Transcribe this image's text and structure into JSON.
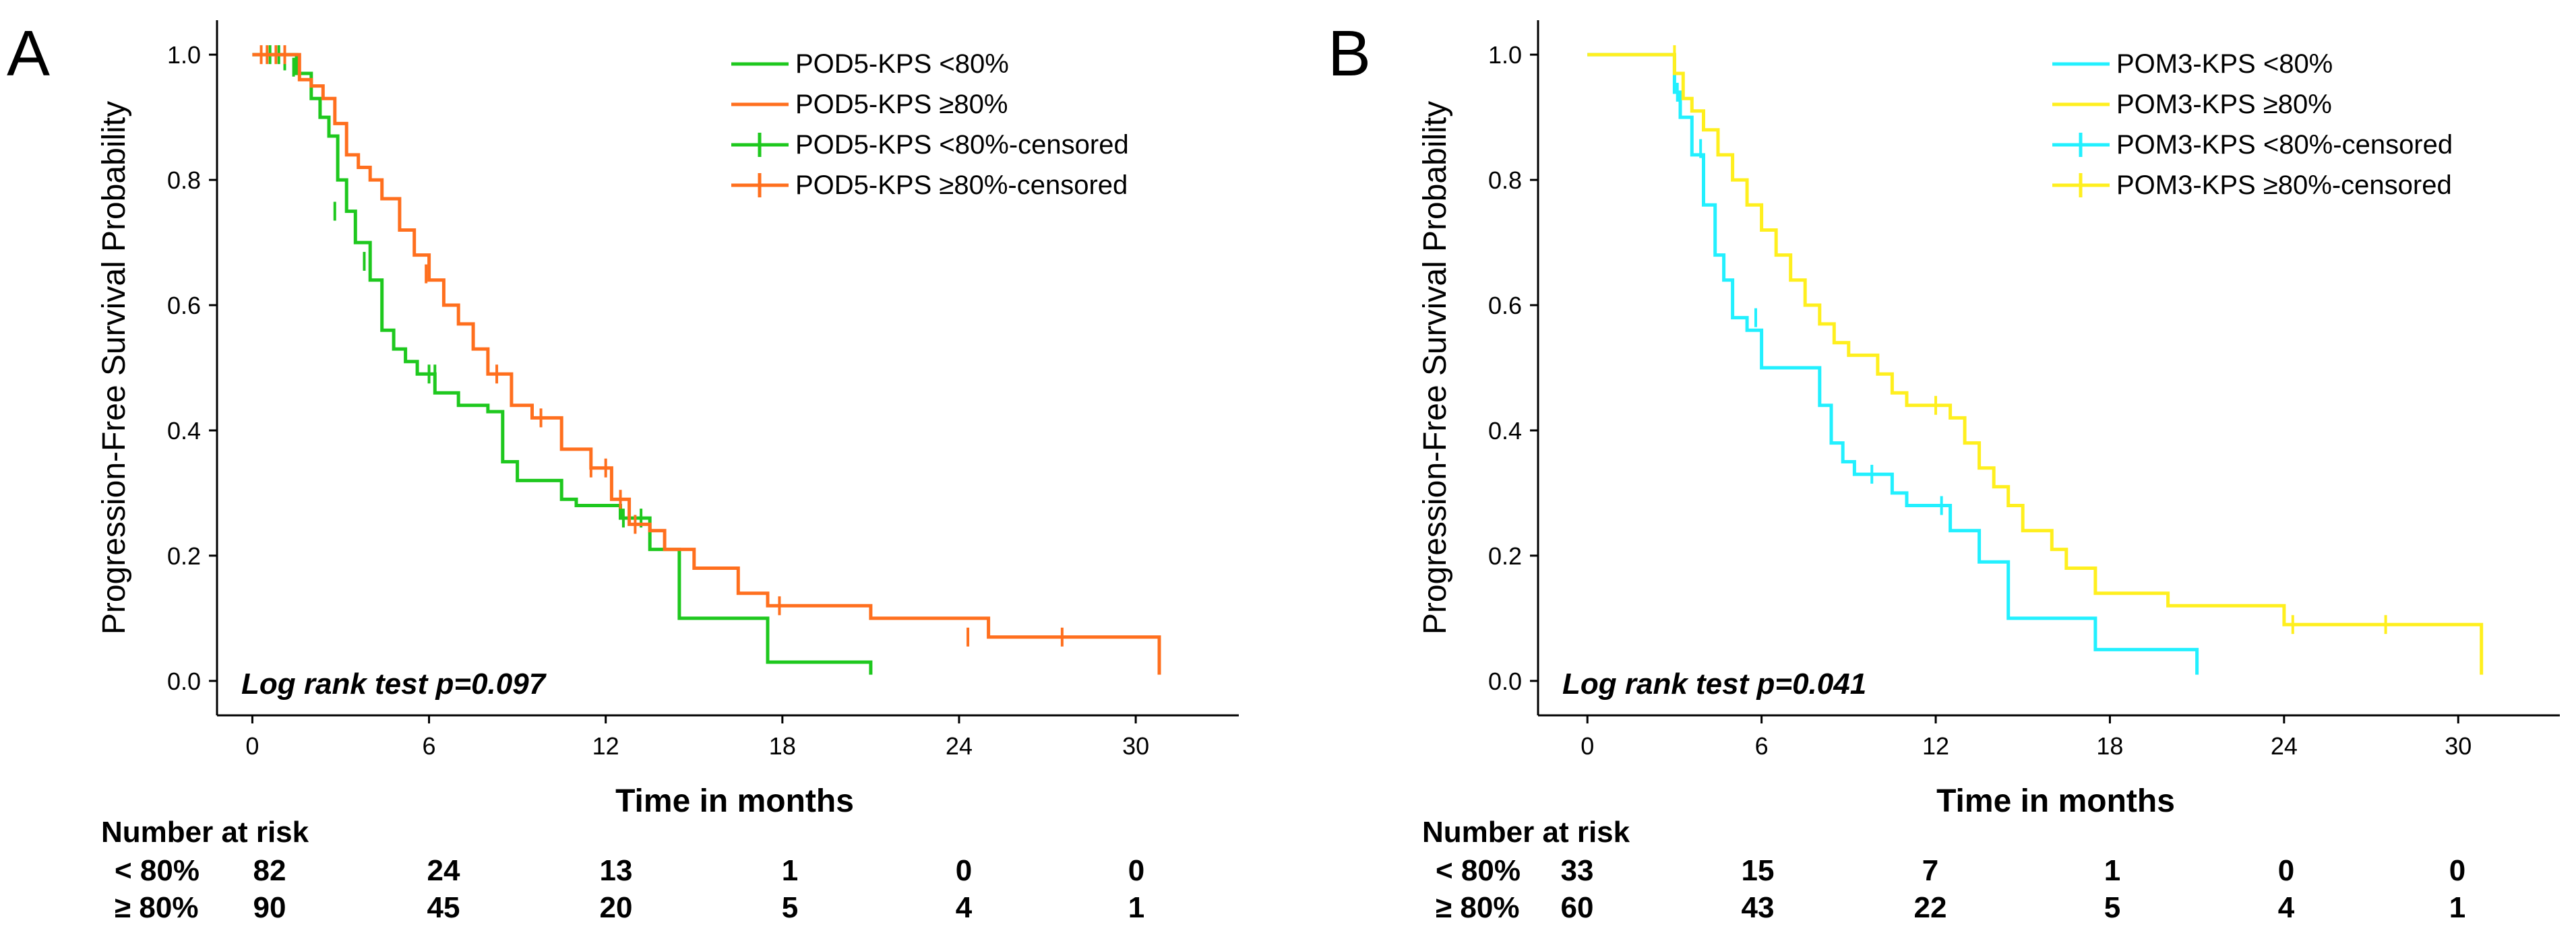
{
  "chart_data": [
    {
      "panel_label": "A",
      "type": "line",
      "xlabel": "Time in months",
      "ylabel": "Progression-Free Survival Probability",
      "xlim": [
        -1.2,
        33.5
      ],
      "ylim": [
        -0.055,
        1.055
      ],
      "xticks": [
        0,
        6,
        12,
        18,
        24,
        30
      ],
      "yticks": [
        0.0,
        0.2,
        0.4,
        0.6,
        0.8,
        1.0
      ],
      "ytick_labels": [
        "0.0",
        "0.2",
        "0.4",
        "0.6",
        "0.8",
        "1.0"
      ],
      "grid": false,
      "legend_position": "top-right",
      "annotation": "Log rank test  p=0.097",
      "series": [
        {
          "name": "POD5-KPS <80%",
          "censored_name": "POD5-KPS <80%-censored",
          "color": "#1ec81e",
          "x": [
            0,
            1.5,
            2.0,
            2.3,
            2.6,
            2.9,
            3.2,
            3.5,
            4.0,
            4.4,
            4.8,
            5.2,
            5.6,
            6.2,
            7.0,
            8.0,
            8.5,
            9.0,
            10.5,
            11.0,
            12.5,
            13.5,
            14.5,
            16.0,
            17.5,
            21.0
          ],
          "y": [
            1.0,
            0.97,
            0.93,
            0.9,
            0.87,
            0.8,
            0.75,
            0.7,
            0.64,
            0.56,
            0.53,
            0.51,
            0.49,
            0.46,
            0.44,
            0.43,
            0.35,
            0.32,
            0.29,
            0.28,
            0.26,
            0.21,
            0.1,
            0.1,
            0.03,
            0.01
          ],
          "censored_x": [
            0.6,
            0.9,
            1.1,
            1.4,
            2.8,
            3.8,
            4.0,
            6.0,
            6.2,
            12.6,
            13.2
          ],
          "censored_y": [
            1.0,
            1.0,
            0.99,
            0.98,
            0.75,
            0.67,
            0.67,
            0.49,
            0.49,
            0.26,
            0.26
          ]
        },
        {
          "name": "POD5-KPS ≥80%",
          "censored_name": "POD5-KPS ≥80%-censored",
          "color": "#ff6f1e",
          "x": [
            0,
            1.6,
            2.0,
            2.4,
            2.8,
            3.2,
            3.6,
            4.0,
            4.4,
            5.0,
            5.5,
            6.0,
            6.5,
            7.0,
            7.5,
            8.0,
            8.8,
            9.5,
            10.5,
            11.5,
            12.2,
            12.8,
            13.5,
            14.0,
            15.0,
            16.5,
            17.5,
            21.0,
            25.0,
            30.8
          ],
          "y": [
            1.0,
            0.96,
            0.95,
            0.93,
            0.89,
            0.84,
            0.82,
            0.8,
            0.77,
            0.72,
            0.68,
            0.64,
            0.6,
            0.57,
            0.53,
            0.49,
            0.44,
            0.42,
            0.37,
            0.34,
            0.29,
            0.25,
            0.24,
            0.21,
            0.18,
            0.14,
            0.12,
            0.1,
            0.07,
            0.01
          ],
          "censored_x": [
            0.3,
            0.5,
            0.8,
            1.1,
            5.9,
            8.3,
            9.8,
            11.5,
            12.0,
            12.5,
            13.0,
            17.9,
            24.3,
            27.5
          ],
          "censored_y": [
            1.0,
            1.0,
            1.0,
            1.0,
            0.65,
            0.49,
            0.42,
            0.34,
            0.34,
            0.29,
            0.25,
            0.12,
            0.07,
            0.07
          ]
        }
      ],
      "risk_table": {
        "title": "Number at risk",
        "columns": [
          0,
          6,
          12,
          18,
          24,
          30
        ],
        "rows": [
          {
            "label": "< 80%",
            "values": [
              "82",
              "24",
              "13",
              "1",
              "0",
              "0"
            ]
          },
          {
            "label": "≥ 80%",
            "values": [
              "90",
              "45",
              "20",
              "5",
              "4",
              "1"
            ]
          }
        ]
      }
    },
    {
      "panel_label": "B",
      "type": "line",
      "xlabel": "Time in months",
      "ylabel": "Progression-Free Survival Probability",
      "xlim": [
        -1.7,
        33.5
      ],
      "ylim": [
        -0.055,
        1.055
      ],
      "xticks": [
        0,
        6,
        12,
        18,
        24,
        30
      ],
      "yticks": [
        0.0,
        0.2,
        0.4,
        0.6,
        0.8,
        1.0
      ],
      "ytick_labels": [
        "0.0",
        "0.2",
        "0.4",
        "0.6",
        "0.8",
        "1.0"
      ],
      "grid": false,
      "legend_position": "top-right",
      "annotation": "Log rank test  p=0.041",
      "series": [
        {
          "name": "POM3-KPS <80%",
          "censored_name": "POM3-KPS <80%-censored",
          "color": "#22f0ff",
          "x": [
            0,
            3.0,
            3.2,
            3.6,
            4.0,
            4.4,
            4.7,
            5.0,
            5.5,
            6.0,
            8.0,
            8.4,
            8.8,
            9.2,
            10.0,
            10.5,
            11.0,
            12.5,
            13.5,
            14.5,
            17.5,
            21.0
          ],
          "y": [
            1.0,
            0.94,
            0.9,
            0.84,
            0.76,
            0.68,
            0.64,
            0.58,
            0.56,
            0.5,
            0.44,
            0.38,
            0.35,
            0.33,
            0.33,
            0.3,
            0.28,
            0.24,
            0.19,
            0.1,
            0.05,
            0.01
          ],
          "censored_x": [
            3.1,
            3.9,
            5.8,
            9.8,
            12.2
          ],
          "censored_y": [
            0.94,
            0.85,
            0.58,
            0.33,
            0.28
          ]
        },
        {
          "name": "POM3-KPS ≥80%",
          "censored_name": "POM3-KPS ≥80%-censored",
          "color": "#ffef1e",
          "x": [
            0,
            3.0,
            3.3,
            3.6,
            4.0,
            4.5,
            5.0,
            5.5,
            6.0,
            6.5,
            7.0,
            7.5,
            8.0,
            8.5,
            9.0,
            10.0,
            10.5,
            11.0,
            12.5,
            13.0,
            13.5,
            14.0,
            14.5,
            15.0,
            16.0,
            16.5,
            17.5,
            20.0,
            24.0,
            30.8
          ],
          "y": [
            1.0,
            0.97,
            0.93,
            0.91,
            0.88,
            0.84,
            0.8,
            0.76,
            0.72,
            0.68,
            0.64,
            0.6,
            0.57,
            0.54,
            0.52,
            0.49,
            0.46,
            0.44,
            0.42,
            0.38,
            0.34,
            0.31,
            0.28,
            0.24,
            0.21,
            0.18,
            0.14,
            0.12,
            0.09,
            0.01
          ],
          "censored_x": [
            3.0,
            12.0,
            24.3,
            27.5
          ],
          "censored_y": [
            1.0,
            0.44,
            0.09,
            0.09
          ]
        }
      ],
      "risk_table": {
        "title": "Number at risk",
        "columns": [
          0,
          6,
          12,
          18,
          24,
          30
        ],
        "rows": [
          {
            "label": "< 80%",
            "values": [
              "33",
              "15",
              "7",
              "1",
              "0",
              "0"
            ]
          },
          {
            "label": "≥ 80%",
            "values": [
              "60",
              "43",
              "22",
              "5",
              "4",
              "1"
            ]
          }
        ]
      }
    }
  ]
}
